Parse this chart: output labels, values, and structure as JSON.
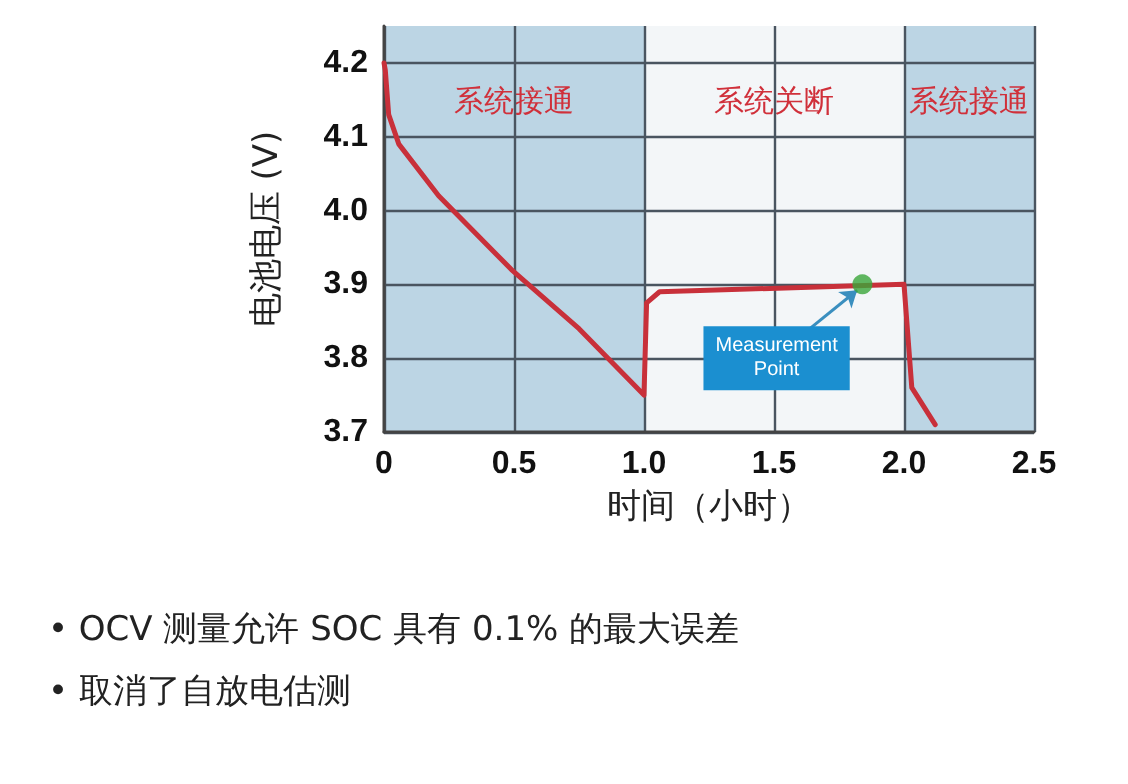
{
  "chart_data": {
    "type": "line",
    "xlabel": "时间（小时）",
    "ylabel": "电池电压 (V)",
    "xlim": [
      0,
      2.5
    ],
    "xticks": [
      {
        "value": 0,
        "label": "0"
      },
      0.5,
      {
        "value": 1,
        "label": "1.0"
      },
      1.5,
      {
        "value": 2,
        "label": "2.0"
      },
      2.5
    ],
    "ylim": [
      3.7,
      4.25
    ],
    "yticks": [
      3.7,
      3.8,
      {
        "value": 4,
        "label": "4.0"
      },
      3.9,
      4.1,
      4.2
    ],
    "series": [
      {
        "marker": "none",
        "color": "#c8303a",
        "x": [
          0,
          0.005,
          0.018,
          0.057,
          0.21,
          0.49,
          0.75,
          1.0,
          1.01,
          1.06,
          2.0,
          2.03,
          2.12
        ],
        "values": [
          4.2,
          4.19,
          4.13,
          4.09,
          4.02,
          3.92,
          3.84,
          3.75,
          3.875,
          3.89,
          3.9,
          3.76,
          3.71
        ]
      },
      {
        "type": "scatter",
        "marker": "circle",
        "color": "#3aa63a",
        "x": [
          1.84
        ],
        "values": [
          3.9
        ]
      }
    ],
    "bands": [
      {
        "axis": "x",
        "from": 0,
        "to": 1,
        "label": "系统接通",
        "color": "#bcd5e4"
      },
      {
        "axis": "x",
        "from": 1,
        "to": 2,
        "label": "系统关断",
        "color": "#f3f6f8"
      },
      {
        "axis": "x",
        "from": 2,
        "to": 2.5,
        "label": "系统接通",
        "color": "#bcd5e4"
      }
    ],
    "annotations": [
      {
        "text": "Measurement Point",
        "x": 1.84,
        "y": 3.9
      },
      "• OCV 测量允许 SOC 具有 0.1% 的最大误差",
      "• 取消了自放电估测"
    ],
    "grid": true,
    "line_style": "solid"
  }
}
